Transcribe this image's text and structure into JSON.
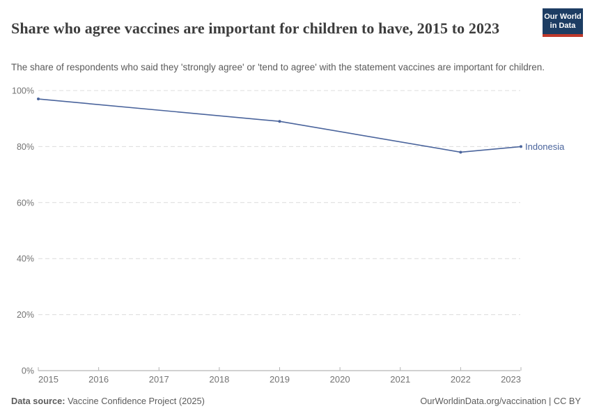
{
  "header": {
    "title": "Share who agree vaccines are important for children to have, 2015 to 2023",
    "subtitle": "The share of respondents who said they 'strongly agree' or 'tend to agree' with the statement vaccines are important for children.",
    "logo": {
      "line1": "Our World",
      "line2": "in Data"
    }
  },
  "footer": {
    "source_label": "Data source:",
    "source_value": " Vaccine Confidence Project (2025)",
    "rights": "OurWorldinData.org/vaccination | CC BY"
  },
  "colors": {
    "series": "#4a649c",
    "grid": "#dcdcdc",
    "axis": "#a3a3a3",
    "tick": "#b3b3b3",
    "tick_label": "#737373",
    "title": "#3d3d3d",
    "subtitle": "#5b5b5b",
    "logo_bg": "#1d3d63",
    "logo_stripe": "#c0392b"
  },
  "chart_data": {
    "type": "line",
    "title": "Share who agree vaccines are important for children to have, 2015 to 2023",
    "xlabel": "",
    "ylabel": "",
    "xlim": [
      2015,
      2023
    ],
    "ylim": [
      0,
      100
    ],
    "grid": "horizontal-dashed",
    "legend_position": "end-of-line",
    "x_ticks": [
      2015,
      2016,
      2017,
      2018,
      2019,
      2020,
      2021,
      2022,
      2023
    ],
    "y_ticks": [
      0,
      20,
      40,
      60,
      80,
      100
    ],
    "y_tick_suffix": "%",
    "series": [
      {
        "name": "Indonesia",
        "points": [
          {
            "x": 2015,
            "y": 97
          },
          {
            "x": 2019,
            "y": 89
          },
          {
            "x": 2022,
            "y": 78
          },
          {
            "x": 2023,
            "y": 80
          }
        ]
      }
    ]
  }
}
